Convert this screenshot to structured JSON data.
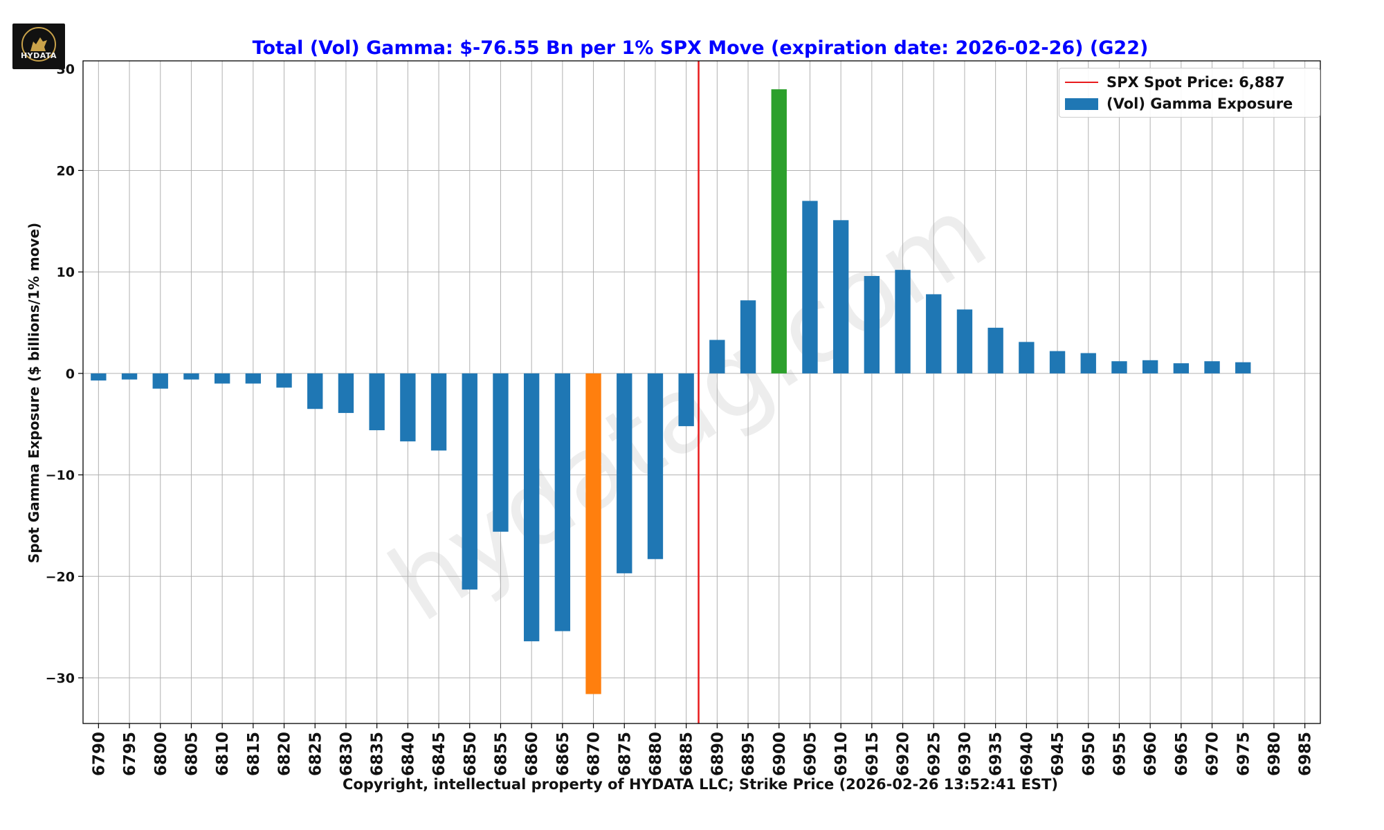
{
  "logo": {
    "text": "HYDATA",
    "icon": "wolf-icon"
  },
  "chart_data": {
    "type": "bar",
    "title": "Total (Vol) Gamma: $-76.55 Bn per 1% SPX Move (expiration date: 2026-02-26) (G22)",
    "title_color": "#0000ff",
    "xlabel": "Copyright, intellectual property of HYDATA LLC; Strike Price (2026-02-26 13:52:41 EST)",
    "ylabel": "Spot Gamma Exposure ($ billions/1% move)",
    "ylim": [
      -34.5,
      30.8
    ],
    "yticks": [
      -30,
      -20,
      -10,
      0,
      10,
      20
    ],
    "ytick_labels": [
      "−30",
      "−20",
      "−10",
      "0",
      "10",
      "20"
    ],
    "grid": true,
    "categories": [
      "6790",
      "6795",
      "6800",
      "6805",
      "6810",
      "6815",
      "6820",
      "6825",
      "6830",
      "6835",
      "6840",
      "6845",
      "6850",
      "6855",
      "6860",
      "6865",
      "6870",
      "6875",
      "6880",
      "6885",
      "6890",
      "6895",
      "6900",
      "6905",
      "6910",
      "6915",
      "6920",
      "6925",
      "6930",
      "6935",
      "6940",
      "6945",
      "6950",
      "6955",
      "6960",
      "6965",
      "6970",
      "6975",
      "6980",
      "6985"
    ],
    "series": [
      {
        "name": "(Vol) Gamma Exposure",
        "color": "#1f77b4",
        "values": [
          -0.7,
          -0.6,
          -1.5,
          -0.6,
          -1.0,
          -1.0,
          -1.4,
          -3.5,
          -3.9,
          -5.6,
          -6.7,
          -7.6,
          -21.3,
          -15.6,
          -26.4,
          -25.4,
          -31.6,
          -19.7,
          -18.3,
          -5.2,
          3.3,
          7.2,
          28.0,
          17.0,
          15.1,
          9.6,
          10.2,
          7.8,
          6.3,
          4.5,
          3.1,
          2.2,
          2.0,
          1.2,
          1.3,
          1.0,
          1.2,
          1.1,
          null,
          null
        ]
      }
    ],
    "highlights": [
      {
        "category": "6870",
        "color": "#ff7f0e"
      },
      {
        "category": "6900",
        "color": "#2ca02c"
      }
    ],
    "spot_line": {
      "value": 6887,
      "label": "SPX Spot Price: 6,887",
      "color": "#e8191b"
    },
    "legend": {
      "placement": "top-right",
      "entries": [
        "SPX Spot Price: 6,887",
        "(Vol) Gamma Exposure"
      ]
    },
    "watermark": "hydatag.com"
  }
}
